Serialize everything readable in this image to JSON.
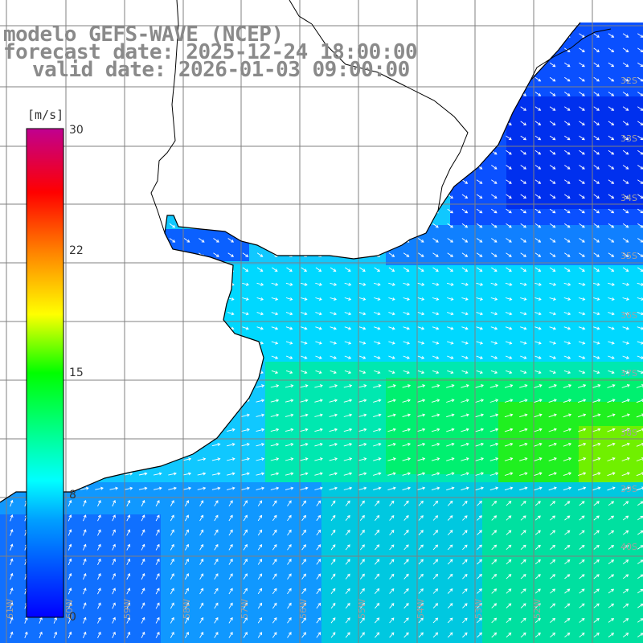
{
  "header": {
    "model": "modelo GEFS-WAVE (NCEP)",
    "forecast": "forecast date: 2025-12-24 18:00:00",
    "valid": "valid date: 2026-01-03 09:00:00"
  },
  "colorbar": {
    "unit": "[m/s]",
    "ticks": [
      "30",
      "22",
      "15",
      "8",
      "0"
    ],
    "min": 0,
    "max": 30,
    "colors": [
      "#0000ff",
      "#00c0ff",
      "#00ffff",
      "#00ff00",
      "#ffff00",
      "#ff8000",
      "#ff0000",
      "#c00090"
    ]
  },
  "map": {
    "lat_labels": [
      "32S",
      "33S",
      "34S",
      "35S",
      "36S",
      "37S",
      "38S",
      "39S",
      "40S"
    ],
    "lon_labels": [
      "61W",
      "60W",
      "59W",
      "58W",
      "57W",
      "56W",
      "55W",
      "54W",
      "53W",
      "52W"
    ],
    "land_color": "#ffffff",
    "grid_color": "#808080",
    "arrow_color": "#ffffff",
    "coast_color": "#000000"
  }
}
